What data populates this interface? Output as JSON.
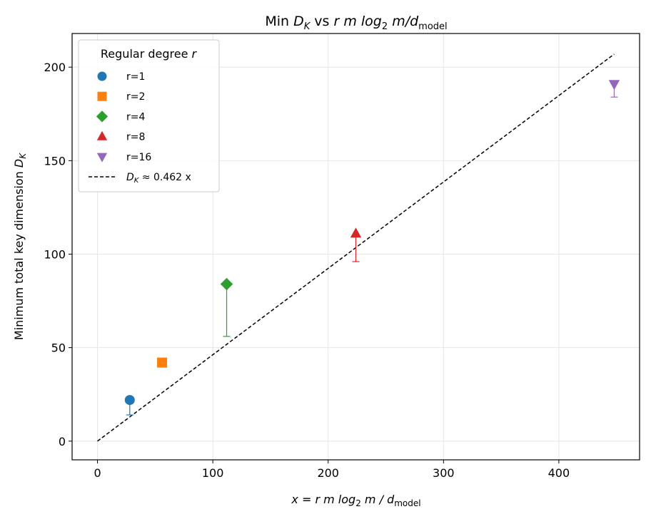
{
  "chart_data": {
    "type": "scatter",
    "title": {
      "prefix": "Min ",
      "dk": "D",
      "dk_sub": "K",
      "mid": " vs ",
      "expr": "r m log",
      "expr_sub": "2",
      "expr_tail": " m/d",
      "expr_sub2": "model"
    },
    "xlabel": {
      "pre": "x = r m log",
      "sub": "2",
      "mid": " m / d",
      "sub2": "model"
    },
    "ylabel": {
      "pre": "Minimum total key dimension ",
      "sym": "D",
      "sub": "K"
    },
    "xlim": [
      -22,
      470
    ],
    "ylim": [
      -10,
      218
    ],
    "xticks": [
      0,
      100,
      200,
      300,
      400
    ],
    "yticks": [
      0,
      50,
      100,
      150,
      200
    ],
    "grid": true,
    "legend": {
      "title_pre": "Regular degree ",
      "title_sym": "r",
      "placement": "top-left",
      "entries": [
        {
          "label": "r=1",
          "marker": "circle",
          "color": "#1f77b4"
        },
        {
          "label": "r=2",
          "marker": "square",
          "color": "#ff7f0e"
        },
        {
          "label": "r=4",
          "marker": "diamond",
          "color": "#2ca02c"
        },
        {
          "label": "r=8",
          "marker": "triangle-up",
          "color": "#d62728"
        },
        {
          "label": "r=16",
          "marker": "triangle-down",
          "color": "#9467bd"
        }
      ],
      "fit_label": {
        "sym": "D",
        "sub": "K",
        "rest": " ≈ 0.462 x"
      }
    },
    "series": [
      {
        "name": "r=1",
        "x": 28,
        "y": 22,
        "err_low": 14,
        "marker": "circle",
        "color": "#1f77b4"
      },
      {
        "name": "r=2",
        "x": 56,
        "y": 42,
        "err_low": 42,
        "marker": "square",
        "color": "#ff7f0e"
      },
      {
        "name": "r=4",
        "x": 112,
        "y": 84,
        "err_low": 56,
        "marker": "diamond",
        "color": "#2ca02c"
      },
      {
        "name": "r=8",
        "x": 224,
        "y": 111,
        "err_low": 96,
        "marker": "triangle-up",
        "color": "#d62728"
      },
      {
        "name": "r=16",
        "x": 448,
        "y": 191,
        "err_low": 184,
        "marker": "triangle-down",
        "color": "#9467bd"
      }
    ],
    "fit_line": {
      "slope": 0.462,
      "x_range": [
        0,
        448
      ],
      "style": "dashed",
      "color": "#000000"
    }
  }
}
